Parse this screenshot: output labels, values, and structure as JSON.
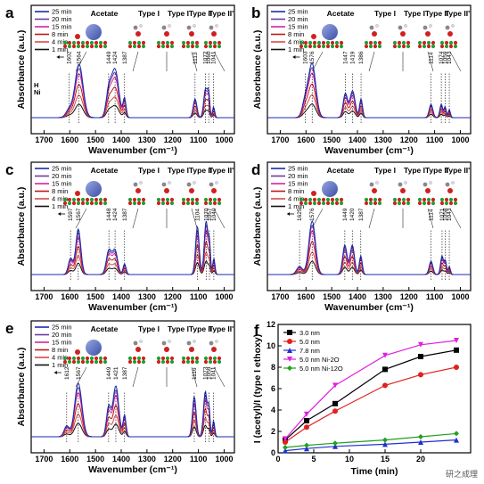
{
  "legend_times": [
    "25 min",
    "20 min",
    "15 min",
    "8 min",
    "4 min",
    "1 min"
  ],
  "legend_colors": [
    "#1a2bb0",
    "#6a3a9e",
    "#e0209a",
    "#c01818",
    "#d84a4a",
    "#111111"
  ],
  "type_labels": [
    "Acetate",
    "Type I",
    "Type I",
    "Type II",
    "Type II'"
  ],
  "ni_label": "Ni",
  "h_label": "H",
  "watermark": "研之成理",
  "chart_data": [
    {
      "panel": "a",
      "type": "line",
      "xlabel": "Wavenumber (cm⁻¹)",
      "ylabel": "Absorbance (a.u.)",
      "xlim": [
        1750,
        960
      ],
      "x_reversed": true,
      "xticks": [
        1700,
        1600,
        1500,
        1400,
        1300,
        1200,
        1100,
        1000
      ],
      "peaks": [
        "1602",
        "1564",
        "1449",
        "1424",
        "1387",
        "1113",
        "1072",
        "1060",
        "1041"
      ],
      "series_names": [
        "25 min",
        "20 min",
        "15 min",
        "8 min",
        "4 min",
        "1 min"
      ]
    },
    {
      "panel": "b",
      "type": "line",
      "xlabel": "Wavenumber (cm⁻¹)",
      "ylabel": "Absorbance (a.u.)",
      "xlim": [
        1750,
        960
      ],
      "x_reversed": true,
      "xticks": [
        1700,
        1600,
        1500,
        1400,
        1300,
        1200,
        1100,
        1000
      ],
      "peaks": [
        "1603",
        "1576",
        "1447",
        "1419",
        "1386",
        "1114",
        "1074",
        "1059",
        "1043"
      ],
      "series_names": [
        "25 min",
        "20 min",
        "15 min",
        "8 min",
        "4 min",
        "1 min"
      ]
    },
    {
      "panel": "c",
      "type": "line",
      "xlabel": "Wavenumber (cm⁻¹)",
      "ylabel": "Absorbance (a.u.)",
      "xlim": [
        1750,
        960
      ],
      "x_reversed": true,
      "xticks": [
        1700,
        1600,
        1500,
        1400,
        1300,
        1200,
        1100,
        1000
      ],
      "peaks": [
        "1597",
        "1567",
        "1448",
        "1424",
        "1387",
        "1104",
        "1070",
        "1057",
        "1040"
      ],
      "series_names": [
        "25 min",
        "20 min",
        "15 min",
        "8 min",
        "4 min",
        "1 min"
      ]
    },
    {
      "panel": "d",
      "type": "line",
      "xlabel": "Wavenumber (cm⁻¹)",
      "ylabel": "Absorbance (a.u.)",
      "xlim": [
        1750,
        960
      ],
      "x_reversed": true,
      "xticks": [
        1700,
        1600,
        1500,
        1400,
        1300,
        1200,
        1100,
        1000
      ],
      "peaks": [
        "1625",
        "1576",
        "1449",
        "1420",
        "1387",
        "1114",
        "1071",
        "1058",
        "1043"
      ],
      "series_names": [
        "25 min",
        "20 min",
        "15 min",
        "8 min",
        "4 min",
        "1 min"
      ]
    },
    {
      "panel": "e",
      "type": "line",
      "xlabel": "Wavenumber (cm⁻¹)",
      "ylabel": "Absorbance (a.u.)",
      "xlim": [
        1750,
        960
      ],
      "x_reversed": true,
      "xticks": [
        1700,
        1600,
        1500,
        1400,
        1300,
        1200,
        1100,
        1000
      ],
      "peaks": [
        "1612",
        "1567",
        "1449",
        "1421",
        "1387",
        "1116",
        "1073",
        "1059",
        "1041"
      ],
      "series_names": [
        "25 min",
        "20 min",
        "15 min",
        "8 min",
        "4 min",
        "1 min"
      ]
    },
    {
      "panel": "f",
      "type": "scatter",
      "xlabel": "Time (min)",
      "ylabel": "I (acetyl)/I (type I ethoxy)",
      "xlim": [
        0,
        27
      ],
      "ylim": [
        0,
        12
      ],
      "xticks": [
        0,
        5,
        10,
        15,
        20
      ],
      "yticks": [
        0,
        2,
        4,
        6,
        8,
        10,
        12
      ],
      "x": [
        1,
        4,
        8,
        15,
        20,
        25
      ],
      "series": [
        {
          "name": "3.0 nm",
          "color": "#000000",
          "marker": "square",
          "values": [
            1.2,
            3.0,
            4.6,
            7.8,
            9.0,
            9.6
          ]
        },
        {
          "name": "5.0 nm",
          "color": "#e02020",
          "marker": "circle",
          "values": [
            1.0,
            2.4,
            3.9,
            6.3,
            7.3,
            8.0
          ]
        },
        {
          "name": "7.8 nm",
          "color": "#2030d0",
          "marker": "triangle",
          "values": [
            0.2,
            0.4,
            0.6,
            0.8,
            1.0,
            1.2
          ]
        },
        {
          "name": "5.0 nm Ni-2O",
          "color": "#e020e0",
          "marker": "triangle-down",
          "values": [
            1.3,
            3.6,
            6.3,
            9.1,
            10.1,
            10.5
          ]
        },
        {
          "name": "5.0 nm Ni-12O",
          "color": "#20a020",
          "marker": "diamond",
          "values": [
            0.5,
            0.7,
            0.9,
            1.2,
            1.5,
            1.8
          ]
        }
      ]
    }
  ]
}
